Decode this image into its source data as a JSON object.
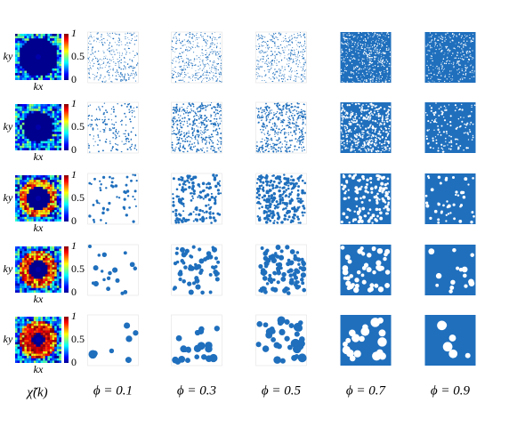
{
  "figure": {
    "rows": [
      {
        "y_label": "ky",
        "x_label": "kx",
        "colorbar_ticks": [
          "1",
          "0.5",
          "0"
        ]
      },
      {
        "y_label": "ky",
        "x_label": "kx",
        "colorbar_ticks": [
          "1",
          "0.5",
          "0"
        ]
      },
      {
        "y_label": "ky",
        "x_label": "kx",
        "colorbar_ticks": [
          "1",
          "0.5",
          "0"
        ]
      },
      {
        "y_label": "ky",
        "x_label": "kx",
        "colorbar_ticks": [
          "1",
          "0.5",
          "0"
        ]
      },
      {
        "y_label": "ky",
        "x_label": "kx",
        "colorbar_ticks": [
          "1",
          "0.5",
          "0"
        ]
      }
    ],
    "spectrum_label": "χ̃(k)",
    "column_labels": [
      "ϕ = 0.1",
      "ϕ = 0.3",
      "ϕ = 0.5",
      "ϕ = 0.7",
      "ϕ = 0.9"
    ]
  }
}
